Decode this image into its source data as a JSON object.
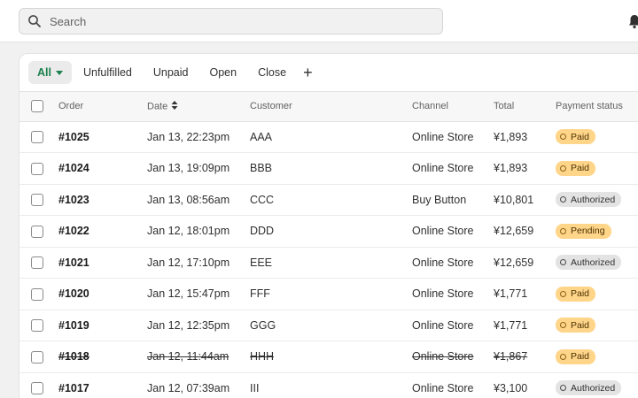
{
  "search": {
    "placeholder": "Search"
  },
  "tabs": [
    {
      "label": "All",
      "active": true
    },
    {
      "label": "Unfulfilled"
    },
    {
      "label": "Unpaid"
    },
    {
      "label": "Open"
    },
    {
      "label": "Close"
    }
  ],
  "add_tab": "+",
  "columns": {
    "order": "Order",
    "date": "Date",
    "customer": "Customer",
    "channel": "Channel",
    "total": "Total",
    "payment_status": "Payment status"
  },
  "orders": [
    {
      "order": "#1025",
      "date": "Jan 13, 22:23pm",
      "customer": "AAA",
      "channel": "Online Store",
      "total": "¥1,893",
      "status": "Paid",
      "struck": false
    },
    {
      "order": "#1024",
      "date": "Jan 13, 19:09pm",
      "customer": "BBB",
      "channel": "Online Store",
      "total": "¥1,893",
      "status": "Paid",
      "struck": false
    },
    {
      "order": "#1023",
      "date": "Jan 13, 08:56am",
      "customer": "CCC",
      "channel": "Buy Button",
      "total": "¥10,801",
      "status": "Authorized",
      "struck": false
    },
    {
      "order": "#1022",
      "date": "Jan 12, 18:01pm",
      "customer": "DDD",
      "channel": "Online Store",
      "total": "¥12,659",
      "status": "Pending",
      "struck": false
    },
    {
      "order": "#1021",
      "date": "Jan 12, 17:10pm",
      "customer": "EEE",
      "channel": "Online Store",
      "total": "¥12,659",
      "status": "Authorized",
      "struck": false
    },
    {
      "order": "#1020",
      "date": "Jan 12, 15:47pm",
      "customer": "FFF",
      "channel": "Online Store",
      "total": "¥1,771",
      "status": "Paid",
      "struck": false
    },
    {
      "order": "#1019",
      "date": "Jan 12, 12:35pm",
      "customer": "GGG",
      "channel": "Online Store",
      "total": "¥1,771",
      "status": "Paid",
      "struck": false
    },
    {
      "order": "#1018",
      "date": "Jan 12, 11:44am",
      "customer": "HHH",
      "channel": "Online Store",
      "total": "¥1,867",
      "status": "Paid",
      "struck": true
    },
    {
      "order": "#1017",
      "date": "Jan 12, 07:39am",
      "customer": "III",
      "channel": "Online Store",
      "total": "¥3,100",
      "status": "Authorized",
      "struck": false
    }
  ],
  "colors": {
    "accent": "#1a7f4b",
    "paid_badge": "#ffd58a",
    "authorized_badge": "#e3e3e3"
  },
  "icons": {
    "search": "search-icon",
    "bell": "bell-icon",
    "sort": "sort-icon",
    "caret": "caret-down-icon"
  }
}
